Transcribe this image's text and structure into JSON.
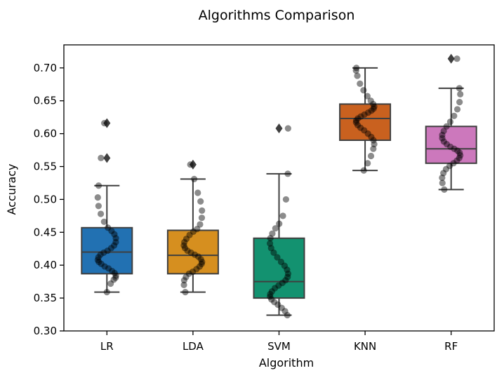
{
  "chart_data": {
    "type": "box",
    "title": "Algorithms Comparison",
    "xlabel": "Algorithm",
    "ylabel": "Accuracy",
    "ylim": [
      0.3,
      0.735
    ],
    "yticks": [
      "0.30",
      "0.35",
      "0.40",
      "0.45",
      "0.50",
      "0.55",
      "0.60",
      "0.65",
      "0.70"
    ],
    "grid": false,
    "categories": [
      "LR",
      "LDA",
      "SVM",
      "KNN",
      "RF"
    ],
    "colors": [
      "#2271b2",
      "#d68f1f",
      "#139270",
      "#c9611f",
      "#cc78bc"
    ],
    "boxes": [
      {
        "whisker_low": 0.359,
        "q1": 0.387,
        "median": 0.42,
        "q3": 0.457,
        "whisker_high": 0.521,
        "outliers": [
          0.563,
          0.616
        ]
      },
      {
        "whisker_low": 0.359,
        "q1": 0.387,
        "median": 0.415,
        "q3": 0.453,
        "whisker_high": 0.531,
        "outliers": [
          0.553
        ]
      },
      {
        "whisker_low": 0.324,
        "q1": 0.35,
        "median": 0.375,
        "q3": 0.441,
        "whisker_high": 0.539,
        "outliers": [
          0.608
        ]
      },
      {
        "whisker_low": 0.544,
        "q1": 0.59,
        "median": 0.623,
        "q3": 0.645,
        "whisker_high": 0.7,
        "outliers": []
      },
      {
        "whisker_low": 0.515,
        "q1": 0.555,
        "median": 0.577,
        "q3": 0.611,
        "whisker_high": 0.669,
        "outliers": [
          0.714
        ]
      }
    ],
    "points": [
      [
        0.359,
        0.372,
        0.378,
        0.381,
        0.384,
        0.388,
        0.391,
        0.395,
        0.398,
        0.402,
        0.405,
        0.408,
        0.412,
        0.416,
        0.419,
        0.422,
        0.426,
        0.43,
        0.435,
        0.441,
        0.447,
        0.452,
        0.457,
        0.466,
        0.478,
        0.49,
        0.503,
        0.521,
        0.563,
        0.616
      ],
      [
        0.359,
        0.37,
        0.377,
        0.382,
        0.387,
        0.39,
        0.394,
        0.398,
        0.402,
        0.405,
        0.409,
        0.413,
        0.416,
        0.419,
        0.422,
        0.426,
        0.43,
        0.435,
        0.44,
        0.446,
        0.451,
        0.455,
        0.462,
        0.472,
        0.483,
        0.497,
        0.51,
        0.531,
        0.553
      ],
      [
        0.324,
        0.33,
        0.335,
        0.34,
        0.344,
        0.348,
        0.352,
        0.356,
        0.36,
        0.365,
        0.369,
        0.373,
        0.377,
        0.382,
        0.387,
        0.393,
        0.399,
        0.405,
        0.412,
        0.419,
        0.426,
        0.433,
        0.441,
        0.448,
        0.456,
        0.463,
        0.475,
        0.5,
        0.539,
        0.608
      ],
      [
        0.544,
        0.555,
        0.566,
        0.577,
        0.584,
        0.59,
        0.595,
        0.6,
        0.605,
        0.609,
        0.613,
        0.617,
        0.62,
        0.623,
        0.626,
        0.629,
        0.632,
        0.635,
        0.638,
        0.641,
        0.645,
        0.65,
        0.657,
        0.666,
        0.676,
        0.688,
        0.696,
        0.7
      ],
      [
        0.515,
        0.525,
        0.533,
        0.54,
        0.546,
        0.551,
        0.555,
        0.559,
        0.563,
        0.567,
        0.571,
        0.574,
        0.577,
        0.58,
        0.584,
        0.588,
        0.593,
        0.598,
        0.604,
        0.611,
        0.618,
        0.627,
        0.637,
        0.648,
        0.66,
        0.669,
        0.714
      ]
    ]
  }
}
